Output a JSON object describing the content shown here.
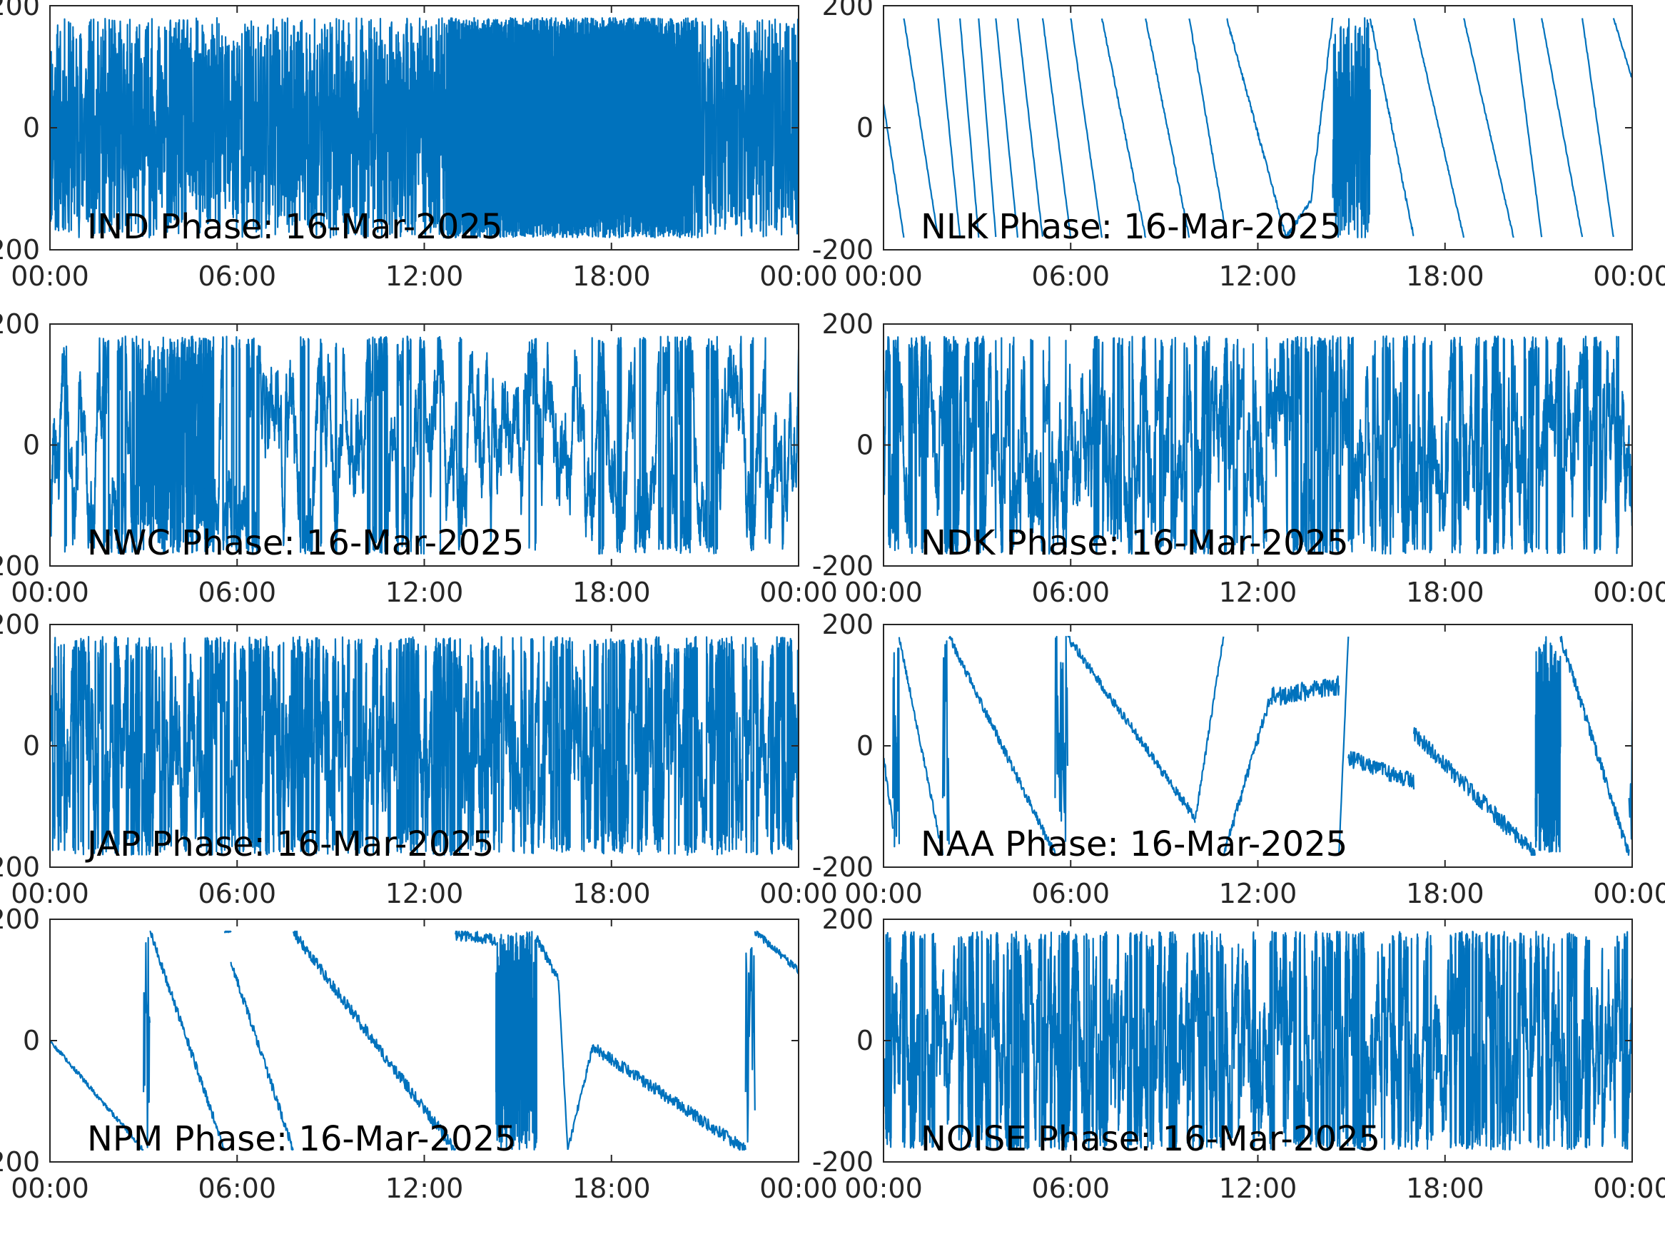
{
  "colors": {
    "trace": "#0072BD",
    "axes": "#262626"
  },
  "chart_data": [
    {
      "type": "line",
      "title": "IND Phase: 16-Mar-2025",
      "x_ticks": [
        "00:00",
        "06:00",
        "12:00",
        "18:00",
        "00:00"
      ],
      "y_ticks": [
        "-200",
        "0",
        "200"
      ],
      "xlim": [
        0,
        24
      ],
      "ylim": [
        -200,
        200
      ],
      "wrap": [
        -180,
        180
      ],
      "segments": [
        {
          "t": [
            0,
            24
          ],
          "mode": "noise",
          "density": 130,
          "seed": 11
        },
        {
          "t": [
            12.7,
            20.6
          ],
          "mode": "noise",
          "density": 900,
          "seed": 12
        }
      ]
    },
    {
      "type": "line",
      "title": "NLK Phase: 16-Mar-2025",
      "x_ticks": [
        "00:00",
        "06:00",
        "12:00",
        "18:00",
        "00:00"
      ],
      "y_ticks": [
        "-200",
        "0",
        "200"
      ],
      "xlim": [
        0,
        24
      ],
      "ylim": [
        -200,
        200
      ],
      "wrap": [
        -180,
        180
      ],
      "segments": [
        {
          "t": [
            0,
            0.65
          ],
          "mode": "line",
          "v": [
            40,
            -180
          ],
          "noise": 2
        },
        {
          "t": [
            0.65,
            1.75
          ],
          "mode": "line",
          "v": [
            180,
            -180
          ],
          "noise": 2
        },
        {
          "t": [
            1.75,
            2.45
          ],
          "mode": "line",
          "v": [
            180,
            -180
          ],
          "noise": 2
        },
        {
          "t": [
            2.45,
            3.05
          ],
          "mode": "line",
          "v": [
            180,
            -180
          ],
          "noise": 2
        },
        {
          "t": [
            3.05,
            3.6
          ],
          "mode": "line",
          "v": [
            180,
            -180
          ],
          "noise": 2
        },
        {
          "t": [
            3.6,
            4.3
          ],
          "mode": "line",
          "v": [
            180,
            -180
          ],
          "noise": 2
        },
        {
          "t": [
            4.3,
            5.1
          ],
          "mode": "line",
          "v": [
            180,
            -180
          ],
          "noise": 2
        },
        {
          "t": [
            5.1,
            6.0
          ],
          "mode": "line",
          "v": [
            180,
            -180
          ],
          "noise": 2
        },
        {
          "t": [
            6.0,
            7.0
          ],
          "mode": "line",
          "v": [
            180,
            -180
          ],
          "noise": 2
        },
        {
          "t": [
            7.0,
            8.4
          ],
          "mode": "line",
          "v": [
            180,
            -180
          ],
          "noise": 3
        },
        {
          "t": [
            8.4,
            9.8
          ],
          "mode": "line",
          "v": [
            180,
            -180
          ],
          "noise": 3
        },
        {
          "t": [
            9.8,
            11.0
          ],
          "mode": "line",
          "v": [
            180,
            -180
          ],
          "noise": 3
        },
        {
          "t": [
            11.0,
            12.9
          ],
          "mode": "line",
          "v": [
            180,
            -180
          ],
          "noise": 4
        },
        {
          "t": [
            12.9,
            13.7
          ],
          "mode": "line",
          "v": [
            -180,
            -120
          ],
          "noise": 4
        },
        {
          "t": [
            13.7,
            14.4
          ],
          "mode": "line",
          "v": [
            -120,
            180
          ],
          "noise": 6
        },
        {
          "t": [
            14.4,
            15.6
          ],
          "mode": "noise",
          "density": 200,
          "seed": 21
        },
        {
          "t": [
            15.6,
            17.0
          ],
          "mode": "line",
          "v": [
            180,
            -180
          ],
          "noise": 4
        },
        {
          "t": [
            17.0,
            18.6
          ],
          "mode": "line",
          "v": [
            180,
            -180
          ],
          "noise": 2
        },
        {
          "t": [
            18.6,
            20.2
          ],
          "mode": "line",
          "v": [
            180,
            -180
          ],
          "noise": 2
        },
        {
          "t": [
            20.2,
            21.1
          ],
          "mode": "line",
          "v": [
            180,
            -180
          ],
          "noise": 2
        },
        {
          "t": [
            21.1,
            22.4
          ],
          "mode": "line",
          "v": [
            180,
            -180
          ],
          "noise": 2
        },
        {
          "t": [
            22.4,
            23.4
          ],
          "mode": "line",
          "v": [
            180,
            -180
          ],
          "noise": 2
        },
        {
          "t": [
            23.4,
            24
          ],
          "mode": "line",
          "v": [
            180,
            80
          ],
          "noise": 2
        }
      ]
    },
    {
      "type": "line",
      "title": "NWC Phase: 16-Mar-2025",
      "x_ticks": [
        "00:00",
        "06:00",
        "12:00",
        "18:00",
        "00:00"
      ],
      "y_ticks": [
        "-200",
        "0",
        "200"
      ],
      "xlim": [
        0,
        24
      ],
      "ylim": [
        -200,
        200
      ],
      "wrap": [
        -180,
        180
      ],
      "segments": [
        {
          "t": [
            0,
            24
          ],
          "mode": "walk",
          "density": 220,
          "step": 38,
          "seed": 31
        },
        {
          "t": [
            2.8,
            5.2
          ],
          "mode": "noise",
          "density": 180,
          "seed": 32
        }
      ]
    },
    {
      "type": "line",
      "title": "NDK Phase: 16-Mar-2025",
      "x_ticks": [
        "00:00",
        "06:00",
        "12:00",
        "18:00",
        "00:00"
      ],
      "y_ticks": [
        "-200",
        "0",
        "200"
      ],
      "xlim": [
        0,
        24
      ],
      "ylim": [
        -200,
        200
      ],
      "wrap": [
        -180,
        180
      ],
      "segments": [
        {
          "t": [
            0,
            24
          ],
          "mode": "walk",
          "density": 260,
          "step": 45,
          "seed": 41
        }
      ]
    },
    {
      "type": "line",
      "title": "JAP Phase: 16-Mar-2025",
      "x_ticks": [
        "00:00",
        "06:00",
        "12:00",
        "18:00",
        "00:00"
      ],
      "y_ticks": [
        "-200",
        "0",
        "200"
      ],
      "xlim": [
        0,
        24
      ],
      "ylim": [
        -200,
        200
      ],
      "wrap": [
        -180,
        180
      ],
      "segments": [
        {
          "t": [
            0,
            24
          ],
          "mode": "walk",
          "density": 260,
          "step": 60,
          "seed": 51
        }
      ]
    },
    {
      "type": "line",
      "title": "NAA Phase: 16-Mar-2025",
      "x_ticks": [
        "00:00",
        "06:00",
        "12:00",
        "18:00",
        "00:00"
      ],
      "y_ticks": [
        "-200",
        "0",
        "200"
      ],
      "xlim": [
        0,
        24
      ],
      "ylim": [
        -200,
        200
      ],
      "wrap": [
        -180,
        180
      ],
      "segments": [
        {
          "t": [
            0,
            0.3
          ],
          "mode": "line",
          "v": [
            -20,
            -130
          ],
          "noise": 10
        },
        {
          "t": [
            0.3,
            0.5
          ],
          "mode": "noise",
          "density": 80,
          "seed": 61
        },
        {
          "t": [
            0.5,
            1.9
          ],
          "mode": "line",
          "v": [
            180,
            -180
          ],
          "noise": 6
        },
        {
          "t": [
            1.9,
            2.1
          ],
          "mode": "noise",
          "density": 40,
          "seed": 62
        },
        {
          "t": [
            2.1,
            5.5
          ],
          "mode": "line",
          "v": [
            180,
            -180
          ],
          "noise": 8
        },
        {
          "t": [
            5.5,
            5.9
          ],
          "mode": "noise",
          "density": 60,
          "seed": 63
        },
        {
          "t": [
            5.9,
            10.0
          ],
          "mode": "line",
          "v": [
            180,
            -120
          ],
          "noise": 8
        },
        {
          "t": [
            10.0,
            10.9
          ],
          "mode": "line",
          "v": [
            -120,
            180
          ],
          "noise": 6
        },
        {
          "t": [
            10.9,
            12.4
          ],
          "mode": "line",
          "v": [
            -180,
            80
          ],
          "noise": 10
        },
        {
          "t": [
            12.4,
            14.6
          ],
          "mode": "line",
          "v": [
            80,
            100
          ],
          "noise": 16
        },
        {
          "t": [
            14.6,
            14.9
          ],
          "mode": "line",
          "v": [
            -180,
            180
          ],
          "noise": 4
        },
        {
          "t": [
            14.9,
            17.0
          ],
          "mode": "line",
          "v": [
            -20,
            -60
          ],
          "noise": 14
        },
        {
          "t": [
            17.0,
            20.9
          ],
          "mode": "line",
          "v": [
            20,
            -180
          ],
          "noise": 14
        },
        {
          "t": [
            20.9,
            21.7
          ],
          "mode": "noise",
          "density": 260,
          "seed": 64
        },
        {
          "t": [
            21.7,
            23.9
          ],
          "mode": "line",
          "v": [
            180,
            -180
          ],
          "noise": 10
        },
        {
          "t": [
            23.9,
            24
          ],
          "mode": "noise",
          "density": 20,
          "seed": 65
        }
      ]
    },
    {
      "type": "line",
      "title": "NPM Phase: 16-Mar-2025",
      "x_ticks": [
        "00:00",
        "06:00",
        "12:00",
        "18:00",
        "00:00"
      ],
      "y_ticks": [
        "-200",
        "0",
        "200"
      ],
      "xlim": [
        0,
        24
      ],
      "ylim": [
        -200,
        200
      ],
      "wrap": [
        -180,
        180
      ],
      "segments": [
        {
          "t": [
            0,
            3.0
          ],
          "mode": "line",
          "v": [
            0,
            -180
          ],
          "noise": 4
        },
        {
          "t": [
            3.0,
            3.2
          ],
          "mode": "noise",
          "density": 80,
          "seed": 71
        },
        {
          "t": [
            3.2,
            5.6
          ],
          "mode": "line",
          "v": [
            180,
            -180
          ],
          "noise": 8
        },
        {
          "t": [
            5.6,
            5.8
          ],
          "mode": "line",
          "v": [
            180,
            180
          ],
          "noise": 2
        },
        {
          "t": [
            5.8,
            7.8
          ],
          "mode": "line",
          "v": [
            130,
            -180
          ],
          "noise": 8
        },
        {
          "t": [
            7.8,
            11.8
          ],
          "mode": "line",
          "v": [
            180,
            -100
          ],
          "noise": 10
        },
        {
          "t": [
            11.8,
            13.0
          ],
          "mode": "line",
          "v": [
            -100,
            -180
          ],
          "noise": 10
        },
        {
          "t": [
            13.0,
            14.3
          ],
          "mode": "line",
          "v": [
            175,
            165
          ],
          "noise": 10
        },
        {
          "t": [
            14.3,
            15.6
          ],
          "mode": "noise",
          "density": 300,
          "seed": 72
        },
        {
          "t": [
            15.6,
            16.3
          ],
          "mode": "line",
          "v": [
            170,
            100
          ],
          "noise": 8
        },
        {
          "t": [
            16.3,
            16.6
          ],
          "mode": "line",
          "v": [
            100,
            -180
          ],
          "noise": 4
        },
        {
          "t": [
            16.6,
            17.4
          ],
          "mode": "line",
          "v": [
            -180,
            -10
          ],
          "noise": 6
        },
        {
          "t": [
            17.4,
            22.3
          ],
          "mode": "line",
          "v": [
            -10,
            -180
          ],
          "noise": 10
        },
        {
          "t": [
            22.3,
            22.6
          ],
          "mode": "noise",
          "density": 60,
          "seed": 73
        },
        {
          "t": [
            22.6,
            24
          ],
          "mode": "line",
          "v": [
            180,
            115
          ],
          "noise": 6
        }
      ]
    },
    {
      "type": "line",
      "title": "NOISE Phase: 16-Mar-2025",
      "x_ticks": [
        "00:00",
        "06:00",
        "12:00",
        "18:00",
        "00:00"
      ],
      "y_ticks": [
        "-200",
        "0",
        "200"
      ],
      "xlim": [
        0,
        24
      ],
      "ylim": [
        -200,
        200
      ],
      "wrap": [
        -180,
        180
      ],
      "segments": [
        {
          "t": [
            0,
            24
          ],
          "mode": "walk",
          "density": 300,
          "step": 50,
          "seed": 81
        }
      ]
    }
  ]
}
